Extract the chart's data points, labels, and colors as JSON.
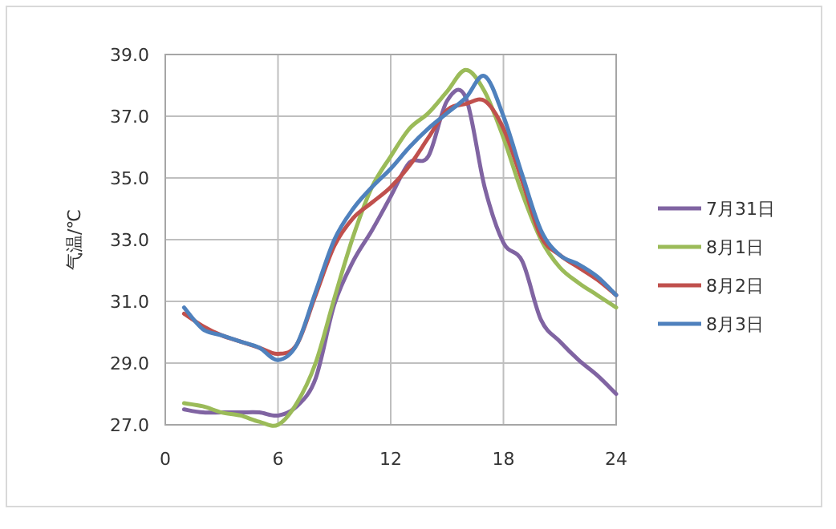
{
  "chart_data": {
    "type": "line",
    "ylabel": "气温/℃",
    "x": [
      1,
      2,
      3,
      4,
      5,
      6,
      7,
      8,
      9,
      10,
      11,
      12,
      13,
      14,
      15,
      16,
      17,
      18,
      19,
      20,
      21,
      22,
      23,
      24
    ],
    "xlim": [
      0,
      24
    ],
    "xticks": [
      0,
      6,
      12,
      18,
      24
    ],
    "ylim": [
      27,
      39
    ],
    "yticks": [
      {
        "value": 27,
        "label": "27.0"
      },
      {
        "value": 29,
        "label": "29.0"
      },
      {
        "value": 31,
        "label": "31.0"
      },
      {
        "value": 33,
        "label": "33.0"
      },
      {
        "value": 35,
        "label": "35.0"
      },
      {
        "value": 37,
        "label": "37.0"
      },
      {
        "value": 39,
        "label": "39.0"
      }
    ],
    "grid": true,
    "legend": "right",
    "series": [
      {
        "name": "7月31日",
        "color": "#8064a2",
        "values": [
          27.5,
          27.4,
          27.4,
          27.4,
          27.4,
          27.3,
          27.6,
          28.5,
          30.9,
          32.3,
          33.3,
          34.4,
          35.5,
          35.7,
          37.5,
          37.6,
          34.7,
          32.9,
          32.3,
          30.4,
          29.7,
          29.1,
          28.6,
          28.0
        ]
      },
      {
        "name": "8月1日",
        "color": "#9bbb59",
        "values": [
          27.7,
          27.6,
          27.4,
          27.3,
          27.1,
          27.0,
          27.7,
          29.0,
          31.1,
          33.1,
          34.7,
          35.7,
          36.6,
          37.1,
          37.8,
          38.5,
          37.8,
          36.3,
          34.5,
          33.0,
          32.1,
          31.6,
          31.2,
          30.8
        ]
      },
      {
        "name": "8月2日",
        "color": "#c0504d",
        "values": [
          30.6,
          30.2,
          29.9,
          29.7,
          29.5,
          29.3,
          29.6,
          31.2,
          32.8,
          33.7,
          34.2,
          34.7,
          35.4,
          36.3,
          37.2,
          37.4,
          37.5,
          36.6,
          34.9,
          33.1,
          32.5,
          32.1,
          31.7,
          31.2
        ]
      },
      {
        "name": "8月3日",
        "color": "#4f81bd",
        "values": [
          30.8,
          30.1,
          29.9,
          29.7,
          29.5,
          29.1,
          29.6,
          31.3,
          33.0,
          34.0,
          34.7,
          35.3,
          36.0,
          36.6,
          37.1,
          37.6,
          38.3,
          37.0,
          35.1,
          33.3,
          32.5,
          32.2,
          31.8,
          31.2
        ]
      }
    ]
  }
}
